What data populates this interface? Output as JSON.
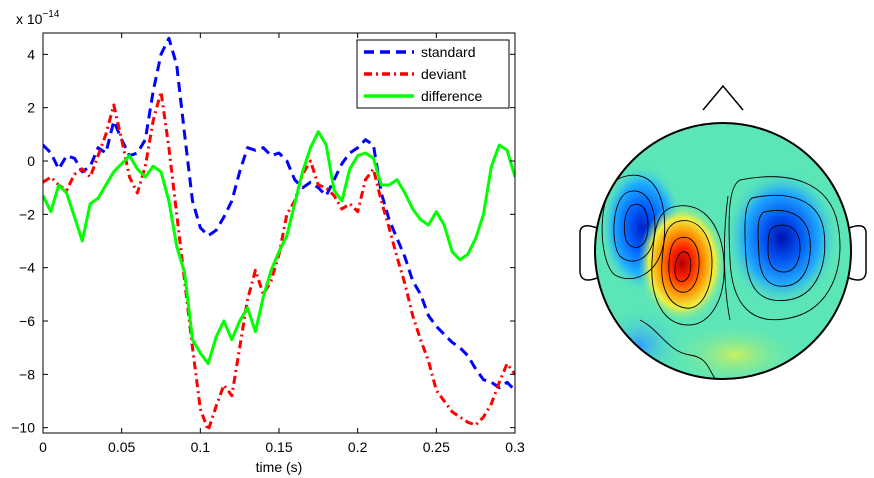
{
  "chart_data": [
    {
      "type": "line",
      "title": "",
      "xlabel": "time (s)",
      "ylabel": "",
      "y_multiplier_label": "x 10",
      "y_multiplier_exponent": "−14",
      "xlim": [
        0,
        0.3
      ],
      "ylim": [
        -10.2,
        4.8
      ],
      "x_ticks": [
        "0",
        "0.05",
        "0.1",
        "0.15",
        "0.2",
        "0.25",
        "0.3"
      ],
      "y_ticks": [
        "4",
        "2",
        "0",
        "−2",
        "−4",
        "−6",
        "−8",
        "−10"
      ],
      "x_tick_values": [
        0,
        0.05,
        0.1,
        0.15,
        0.2,
        0.25,
        0.3
      ],
      "y_tick_values": [
        4,
        2,
        0,
        -2,
        -4,
        -6,
        -8,
        -10
      ],
      "legend_position": "top-right",
      "grid": false,
      "series": [
        {
          "name": "standard",
          "color": "#0000ff",
          "style": "dashed",
          "x": [
            0,
            0.005,
            0.01,
            0.015,
            0.02,
            0.025,
            0.03,
            0.035,
            0.04,
            0.045,
            0.05,
            0.055,
            0.06,
            0.065,
            0.07,
            0.075,
            0.08,
            0.085,
            0.09,
            0.095,
            0.1,
            0.105,
            0.11,
            0.115,
            0.12,
            0.125,
            0.13,
            0.135,
            0.14,
            0.145,
            0.15,
            0.155,
            0.16,
            0.165,
            0.17,
            0.175,
            0.18,
            0.185,
            0.19,
            0.195,
            0.2,
            0.205,
            0.21,
            0.215,
            0.22,
            0.225,
            0.23,
            0.235,
            0.24,
            0.245,
            0.25,
            0.255,
            0.26,
            0.265,
            0.27,
            0.275,
            0.28,
            0.285,
            0.29,
            0.295,
            0.3
          ],
          "values": [
            0.6,
            0.3,
            -0.3,
            0.2,
            0.1,
            -0.4,
            -0.2,
            0.5,
            0.3,
            1.5,
            0.8,
            0.2,
            0.3,
            0.8,
            2.6,
            4.0,
            4.6,
            3.6,
            1.0,
            -1.5,
            -2.5,
            -2.8,
            -2.6,
            -2.1,
            -1.5,
            -0.4,
            0.5,
            0.4,
            0.5,
            0.2,
            0.3,
            0.0,
            -0.7,
            -1.0,
            -0.8,
            -1.0,
            -1.3,
            -0.7,
            -0.1,
            0.3,
            0.5,
            0.8,
            0.6,
            -1.2,
            -2.2,
            -2.9,
            -3.6,
            -4.5,
            -5.0,
            -5.8,
            -6.2,
            -6.5,
            -6.8,
            -7.0,
            -7.3,
            -7.8,
            -8.2,
            -8.3,
            -8.5,
            -8.3,
            -8.6
          ]
        },
        {
          "name": "deviant",
          "color": "#ff0000",
          "style": "dash-dot",
          "x": [
            0,
            0.005,
            0.01,
            0.015,
            0.02,
            0.025,
            0.03,
            0.035,
            0.04,
            0.045,
            0.05,
            0.055,
            0.06,
            0.065,
            0.07,
            0.075,
            0.08,
            0.085,
            0.09,
            0.095,
            0.1,
            0.105,
            0.11,
            0.115,
            0.12,
            0.125,
            0.13,
            0.135,
            0.14,
            0.145,
            0.15,
            0.155,
            0.16,
            0.165,
            0.17,
            0.175,
            0.18,
            0.185,
            0.19,
            0.195,
            0.2,
            0.205,
            0.21,
            0.215,
            0.22,
            0.225,
            0.23,
            0.235,
            0.24,
            0.245,
            0.25,
            0.255,
            0.26,
            0.265,
            0.27,
            0.275,
            0.28,
            0.285,
            0.29,
            0.295,
            0.3
          ],
          "values": [
            -0.8,
            -0.6,
            -0.9,
            -1.1,
            -0.5,
            -0.3,
            -0.6,
            0.2,
            1.0,
            2.1,
            0.8,
            -0.6,
            -1.2,
            -0.2,
            1.5,
            2.6,
            0.5,
            -2.0,
            -4.5,
            -7.0,
            -9.3,
            -10.1,
            -9.2,
            -8.4,
            -8.8,
            -7.0,
            -5.2,
            -4.1,
            -5.0,
            -4.5,
            -3.5,
            -2.0,
            -1.5,
            -0.5,
            0.0,
            -0.9,
            -1.0,
            -1.3,
            -1.8,
            -1.6,
            -1.9,
            -0.7,
            -0.3,
            -1.5,
            -2.5,
            -3.6,
            -4.6,
            -5.8,
            -6.7,
            -7.5,
            -8.6,
            -9.0,
            -9.4,
            -9.6,
            -9.8,
            -9.9,
            -9.6,
            -9.1,
            -8.3,
            -7.6,
            -8.0
          ]
        },
        {
          "name": "difference",
          "color": "#00ff00",
          "style": "solid",
          "x": [
            0,
            0.005,
            0.01,
            0.015,
            0.02,
            0.025,
            0.03,
            0.035,
            0.04,
            0.045,
            0.05,
            0.055,
            0.06,
            0.065,
            0.07,
            0.075,
            0.08,
            0.085,
            0.09,
            0.095,
            0.1,
            0.105,
            0.11,
            0.115,
            0.12,
            0.125,
            0.13,
            0.135,
            0.14,
            0.145,
            0.15,
            0.155,
            0.16,
            0.165,
            0.17,
            0.175,
            0.18,
            0.185,
            0.19,
            0.195,
            0.2,
            0.205,
            0.21,
            0.215,
            0.22,
            0.225,
            0.23,
            0.235,
            0.24,
            0.245,
            0.25,
            0.255,
            0.26,
            0.265,
            0.27,
            0.275,
            0.28,
            0.285,
            0.29,
            0.295,
            0.3
          ],
          "values": [
            -1.3,
            -1.9,
            -0.9,
            -1.2,
            -2.1,
            -3.0,
            -1.6,
            -1.4,
            -0.9,
            -0.4,
            -0.1,
            0.2,
            -0.3,
            -0.6,
            -0.2,
            -0.4,
            -1.5,
            -3.2,
            -4.2,
            -6.7,
            -7.2,
            -7.6,
            -6.6,
            -6.0,
            -6.7,
            -6.0,
            -5.5,
            -6.4,
            -5.1,
            -4.1,
            -3.4,
            -2.8,
            -1.6,
            -0.4,
            0.5,
            1.1,
            0.6,
            -1.1,
            -1.5,
            -0.3,
            0.2,
            0.3,
            0.1,
            -0.9,
            -0.9,
            -0.7,
            -1.2,
            -1.8,
            -2.2,
            -2.4,
            -1.9,
            -2.4,
            -3.4,
            -3.7,
            -3.5,
            -2.9,
            -2.0,
            -0.2,
            0.6,
            0.4,
            -0.6
          ]
        }
      ]
    },
    {
      "type": "heatmap",
      "title": "",
      "description_visible": "scalp topography",
      "colormap": [
        "#00008f",
        "#0040ff",
        "#00c0ff",
        "#40ffbf",
        "#c0ff40",
        "#ffc000",
        "#ff4000",
        "#8f0000"
      ],
      "background_color": "#5ce6b8",
      "blobs": [
        {
          "polarity": "negative",
          "strength": 1.0,
          "region": "left-frontal"
        },
        {
          "polarity": "positive",
          "strength": 1.0,
          "region": "left-central"
        },
        {
          "polarity": "negative",
          "strength": 1.0,
          "region": "right-central"
        },
        {
          "polarity": "negative",
          "strength": 0.45,
          "region": "left-posterior"
        },
        {
          "polarity": "positive",
          "strength": 0.35,
          "region": "posterior"
        }
      ]
    }
  ]
}
